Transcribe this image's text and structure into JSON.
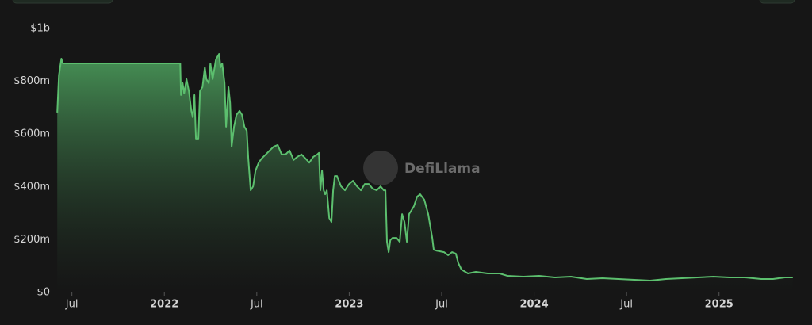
{
  "chart_data": {
    "type": "area",
    "watermark": "DefiLlama",
    "color": "#5cbf6e",
    "grid": false,
    "xlim": [
      2021.42,
      2025.4
    ],
    "xticks": [
      {
        "value": 2021.5,
        "label": "Jul"
      },
      2022,
      {
        "value": 2022.5,
        "label": "Jul"
      },
      2023,
      {
        "value": 2023.5,
        "label": "Jul"
      },
      2024,
      {
        "value": 2024.5,
        "label": "Jul"
      },
      2025
    ],
    "ylim": [
      0,
      1000
    ],
    "yticks": [
      {
        "value": 0,
        "label": "$0"
      },
      {
        "value": 200,
        "label": "$200m"
      },
      {
        "value": 400,
        "label": "$400m"
      },
      {
        "value": 600,
        "label": "$600m"
      },
      {
        "value": 800,
        "label": "$800m"
      },
      {
        "value": 1000,
        "label": "$1b"
      }
    ],
    "x": [
      2021.421,
      2021.43,
      2021.443,
      2021.451,
      2021.627,
      2022.086,
      2022.09,
      2022.099,
      2022.107,
      2022.12,
      2022.133,
      2022.146,
      2022.154,
      2022.163,
      2022.171,
      2022.184,
      2022.193,
      2022.206,
      2022.219,
      2022.227,
      2022.24,
      2022.249,
      2022.261,
      2022.279,
      2022.296,
      2022.304,
      2022.313,
      2022.326,
      2022.334,
      2022.347,
      2022.356,
      2022.364,
      2022.377,
      2022.39,
      2022.407,
      2022.42,
      2022.433,
      2022.446,
      2022.454,
      2022.467,
      2022.48,
      2022.493,
      2022.51,
      2022.527,
      2022.549,
      2022.57,
      2022.592,
      2022.613,
      2022.634,
      2022.656,
      2022.677,
      2022.699,
      2022.72,
      2022.742,
      2022.763,
      2022.784,
      2022.806,
      2022.827,
      2022.836,
      2022.844,
      2022.853,
      2022.862,
      2022.87,
      2022.879,
      2022.892,
      2022.904,
      2022.913,
      2022.922,
      2022.934,
      2022.956,
      2022.977,
      2022.999,
      2023.02,
      2023.042,
      2023.063,
      2023.084,
      2023.106,
      2023.127,
      2023.149,
      2023.17,
      2023.187,
      2023.196,
      2023.204,
      2023.213,
      2023.222,
      2023.234,
      2023.256,
      2023.273,
      2023.286,
      2023.299,
      2023.312,
      2023.324,
      2023.337,
      2023.35,
      2023.367,
      2023.384,
      2023.406,
      2023.427,
      2023.449,
      2023.457,
      2023.47,
      2023.513,
      2023.535,
      2023.556,
      2023.577,
      2023.59,
      2023.607,
      2023.642,
      2023.685,
      2023.749,
      2023.813,
      2023.856,
      2023.942,
      2024.027,
      2024.113,
      2024.199,
      2024.285,
      2024.37,
      2024.456,
      2024.542,
      2024.628,
      2024.713,
      2024.799,
      2024.885,
      2024.97,
      2025.056,
      2025.142,
      2025.228,
      2025.292,
      2025.356,
      2025.399
    ],
    "values": [
      682,
      823,
      886,
      868,
      868,
      868,
      748,
      793,
      754,
      808,
      763,
      688,
      664,
      748,
      583,
      583,
      763,
      778,
      853,
      808,
      793,
      868,
      808,
      883,
      904,
      853,
      868,
      793,
      628,
      778,
      718,
      553,
      628,
      673,
      688,
      673,
      628,
      613,
      508,
      387,
      402,
      462,
      492,
      508,
      523,
      538,
      553,
      559,
      523,
      523,
      538,
      502,
      514,
      523,
      508,
      492,
      514,
      523,
      529,
      387,
      462,
      387,
      372,
      387,
      282,
      267,
      387,
      441,
      441,
      402,
      387,
      411,
      423,
      402,
      387,
      411,
      411,
      393,
      387,
      402,
      387,
      387,
      192,
      153,
      198,
      207,
      207,
      192,
      297,
      267,
      192,
      297,
      312,
      327,
      363,
      372,
      351,
      297,
      207,
      162,
      159,
      153,
      141,
      153,
      147,
      111,
      87,
      72,
      78,
      72,
      72,
      63,
      60,
      63,
      57,
      60,
      51,
      54,
      51,
      48,
      45,
      51,
      54,
      57,
      60,
      57,
      57,
      51,
      51,
      57,
      57
    ]
  }
}
